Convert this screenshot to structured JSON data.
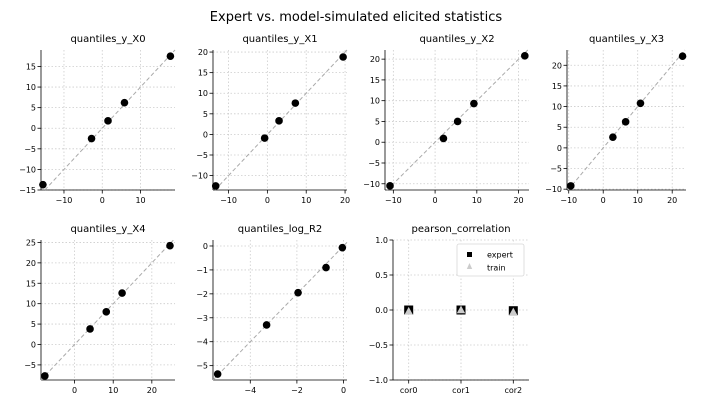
{
  "figure_title": "Expert vs. model-simulated elicited statistics",
  "colors": {
    "points": "#000000",
    "diagonal": "#aaaaaa",
    "grid": "#cccccc",
    "expert": "#000000",
    "train": "#cccccc"
  },
  "chart_data": [
    {
      "type": "scatter",
      "title": "quantiles_y_X0",
      "xlim": [
        -16,
        19
      ],
      "ylim": [
        -15,
        19
      ],
      "xticks": [
        -10,
        0,
        10
      ],
      "yticks": [
        -15,
        -10,
        -5,
        0,
        5,
        10,
        15
      ],
      "points": [
        [
          -15.5,
          -13.7
        ],
        [
          -2.8,
          -2.5
        ],
        [
          1.5,
          1.8
        ],
        [
          5.8,
          6.2
        ],
        [
          17.8,
          17.5
        ]
      ],
      "diagonal": true
    },
    {
      "type": "scatter",
      "title": "quantiles_y_X1",
      "xlim": [
        -14,
        20.5
      ],
      "ylim": [
        -13.5,
        20.5
      ],
      "xticks": [
        -10,
        0,
        10,
        20
      ],
      "yticks": [
        -10,
        -5,
        0,
        5,
        10,
        15,
        20
      ],
      "points": [
        [
          -13.3,
          -12.5
        ],
        [
          -0.7,
          -0.9
        ],
        [
          3,
          3.3
        ],
        [
          7.2,
          7.6
        ],
        [
          19.5,
          18.8
        ]
      ],
      "diagonal": true
    },
    {
      "type": "scatter",
      "title": "quantiles_y_X2",
      "xlim": [
        -12,
        22.5
      ],
      "ylim": [
        -11.5,
        22.2
      ],
      "xticks": [
        -10,
        0,
        10,
        20
      ],
      "yticks": [
        -10,
        -5,
        0,
        5,
        10,
        15,
        20
      ],
      "points": [
        [
          -10.8,
          -10.5
        ],
        [
          2,
          0.9
        ],
        [
          5.4,
          5
        ],
        [
          9.3,
          9.3
        ],
        [
          21.5,
          20.8
        ]
      ],
      "diagonal": true
    },
    {
      "type": "scatter",
      "title": "quantiles_y_X3",
      "xlim": [
        -10.5,
        24
      ],
      "ylim": [
        -10.2,
        23.7
      ],
      "xticks": [
        -10,
        0,
        10,
        20
      ],
      "yticks": [
        -10,
        -5,
        0,
        5,
        10,
        15,
        20
      ],
      "points": [
        [
          -9.4,
          -9.2
        ],
        [
          2.8,
          2.6
        ],
        [
          6.5,
          6.3
        ],
        [
          10.8,
          10.8
        ],
        [
          23,
          22.2
        ]
      ],
      "diagonal": true
    },
    {
      "type": "scatter",
      "title": "quantiles_y_X4",
      "xlim": [
        -8.7,
        26
      ],
      "ylim": [
        -8.7,
        25.6
      ],
      "xticks": [
        0,
        10,
        20
      ],
      "yticks": [
        -5,
        0,
        5,
        10,
        15,
        20,
        25
      ],
      "points": [
        [
          -7.7,
          -7.7
        ],
        [
          4,
          3.8
        ],
        [
          8.2,
          8
        ],
        [
          12.3,
          12.6
        ],
        [
          24.7,
          24.2
        ]
      ],
      "diagonal": true
    },
    {
      "type": "scatter",
      "title": "quantiles_log_R2",
      "xlim": [
        -5.6,
        0.15
      ],
      "ylim": [
        -5.6,
        0.25
      ],
      "xticks": [
        -4,
        -2,
        0
      ],
      "yticks": [
        -5,
        -4,
        -3,
        -2,
        -1,
        0
      ],
      "points": [
        [
          -5.4,
          -5.35
        ],
        [
          -3.3,
          -3.3
        ],
        [
          -1.95,
          -1.95
        ],
        [
          -0.75,
          -0.9
        ],
        [
          -0.05,
          -0.07
        ]
      ],
      "diagonal": true
    },
    {
      "type": "scatter",
      "title": "pearson_correlation",
      "categories": [
        "cor0",
        "cor1",
        "cor2"
      ],
      "xlim": [
        -0.3,
        2.3
      ],
      "ylim": [
        -1.0,
        1.0
      ],
      "yticks": [
        -1.0,
        -0.5,
        0.0,
        0.5,
        1.0
      ],
      "ytick_labels": [
        "−1.0",
        "−0.5",
        "0.0",
        "0.5",
        "1.0"
      ],
      "series": [
        {
          "name": "expert",
          "marker": "square",
          "values": [
            0.0,
            0.0,
            -0.01
          ]
        },
        {
          "name": "train",
          "marker": "triangle",
          "values": [
            -0.02,
            0.0,
            -0.03
          ]
        }
      ],
      "legend": "top-right"
    }
  ]
}
